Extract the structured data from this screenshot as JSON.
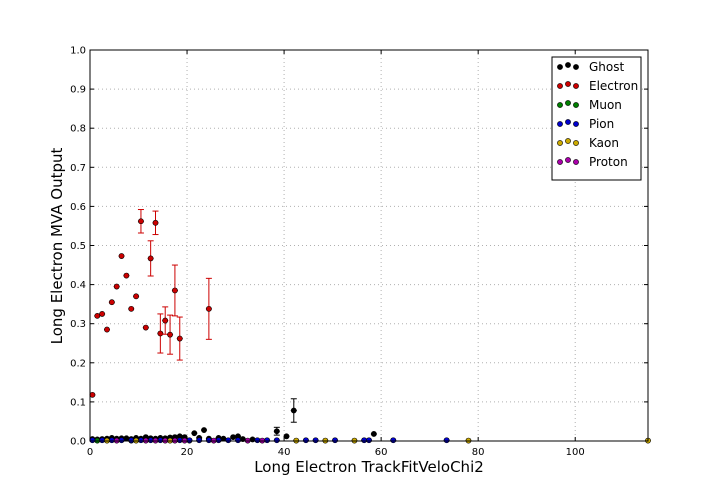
{
  "chart_data": {
    "type": "scatter",
    "title": "",
    "xlabel": "Long Electron TrackFitVeloChi2",
    "ylabel": "Long Electron MVA Output",
    "xlim": [
      0,
      115
    ],
    "ylim": [
      0,
      1.0
    ],
    "xticks": [
      "0",
      "20",
      "40",
      "60",
      "80",
      "100"
    ],
    "xtick_values": [
      0,
      20,
      40,
      60,
      80,
      100
    ],
    "yticks": [
      "0.0",
      "0.1",
      "0.2",
      "0.3",
      "0.4",
      "0.5",
      "0.6",
      "0.7",
      "0.8",
      "0.9",
      "1.0"
    ],
    "ytick_values": [
      0,
      0.1,
      0.2,
      0.3,
      0.4,
      0.5,
      0.6,
      0.7,
      0.8,
      0.9,
      1.0
    ],
    "grid": true,
    "legend_position": "top-right",
    "series": [
      {
        "name": "Ghost",
        "color": "#000000",
        "points": [
          {
            "x": 0.5,
            "y": 0.005
          },
          {
            "x": 1.5,
            "y": 0.004
          },
          {
            "x": 2.5,
            "y": 0.005
          },
          {
            "x": 3.5,
            "y": 0.006
          },
          {
            "x": 4.5,
            "y": 0.008
          },
          {
            "x": 5.5,
            "y": 0.006
          },
          {
            "x": 6.5,
            "y": 0.007
          },
          {
            "x": 7.5,
            "y": 0.007
          },
          {
            "x": 8.5,
            "y": 0.005
          },
          {
            "x": 9.5,
            "y": 0.008
          },
          {
            "x": 10.5,
            "y": 0.006
          },
          {
            "x": 11.5,
            "y": 0.01
          },
          {
            "x": 12.5,
            "y": 0.007
          },
          {
            "x": 13.5,
            "y": 0.006
          },
          {
            "x": 14.5,
            "y": 0.008
          },
          {
            "x": 15.5,
            "y": 0.007
          },
          {
            "x": 16.5,
            "y": 0.009
          },
          {
            "x": 17.5,
            "y": 0.01
          },
          {
            "x": 18.5,
            "y": 0.012
          },
          {
            "x": 19.5,
            "y": 0.01
          },
          {
            "x": 21.5,
            "y": 0.02
          },
          {
            "x": 22.5,
            "y": 0.008
          },
          {
            "x": 23.5,
            "y": 0.028
          },
          {
            "x": 24.5,
            "y": 0.006
          },
          {
            "x": 26.5,
            "y": 0.008
          },
          {
            "x": 27.5,
            "y": 0.006
          },
          {
            "x": 29.5,
            "y": 0.01
          },
          {
            "x": 30.5,
            "y": 0.012
          },
          {
            "x": 31.5,
            "y": 0.005
          },
          {
            "x": 33.5,
            "y": 0.004
          },
          {
            "x": 38.5,
            "y": 0.025,
            "err": 0.01
          },
          {
            "x": 40.5,
            "y": 0.012
          },
          {
            "x": 42.0,
            "y": 0.078,
            "err": 0.03
          },
          {
            "x": 58.5,
            "y": 0.018
          }
        ]
      },
      {
        "name": "Electron",
        "color": "#cc0000",
        "points": [
          {
            "x": 0.5,
            "y": 0.118
          },
          {
            "x": 1.5,
            "y": 0.32
          },
          {
            "x": 2.5,
            "y": 0.325
          },
          {
            "x": 3.5,
            "y": 0.285
          },
          {
            "x": 4.5,
            "y": 0.355
          },
          {
            "x": 5.5,
            "y": 0.395
          },
          {
            "x": 6.5,
            "y": 0.473
          },
          {
            "x": 7.5,
            "y": 0.423
          },
          {
            "x": 8.5,
            "y": 0.338
          },
          {
            "x": 9.5,
            "y": 0.37
          },
          {
            "x": 10.5,
            "y": 0.562,
            "err": 0.03
          },
          {
            "x": 11.5,
            "y": 0.29
          },
          {
            "x": 12.5,
            "y": 0.467,
            "err": 0.045
          },
          {
            "x": 13.5,
            "y": 0.558,
            "err": 0.03
          },
          {
            "x": 14.5,
            "y": 0.275,
            "err": 0.05
          },
          {
            "x": 15.5,
            "y": 0.308,
            "err": 0.035
          },
          {
            "x": 16.5,
            "y": 0.272,
            "err": 0.05
          },
          {
            "x": 17.5,
            "y": 0.385,
            "err": 0.065
          },
          {
            "x": 18.5,
            "y": 0.262,
            "err": 0.055
          },
          {
            "x": 24.5,
            "y": 0.338,
            "err": 0.078
          }
        ]
      },
      {
        "name": "Muon",
        "color": "#007f00",
        "points": [
          {
            "x": 1.5,
            "y": 0.001
          },
          {
            "x": 8.5,
            "y": 0.001
          },
          {
            "x": 20.5,
            "y": 0.001
          }
        ]
      },
      {
        "name": "Pion",
        "color": "#0000cc",
        "points": [
          {
            "x": 0.5,
            "y": 0.002
          },
          {
            "x": 2.5,
            "y": 0.002
          },
          {
            "x": 4.5,
            "y": 0.002
          },
          {
            "x": 6.5,
            "y": 0.002
          },
          {
            "x": 8.5,
            "y": 0.002
          },
          {
            "x": 10.5,
            "y": 0.002
          },
          {
            "x": 12.5,
            "y": 0.002
          },
          {
            "x": 14.5,
            "y": 0.002
          },
          {
            "x": 16.5,
            "y": 0.002
          },
          {
            "x": 18.5,
            "y": 0.002
          },
          {
            "x": 20.5,
            "y": 0.002
          },
          {
            "x": 22.5,
            "y": 0.002
          },
          {
            "x": 24.5,
            "y": 0.002
          },
          {
            "x": 26.5,
            "y": 0.002
          },
          {
            "x": 28.5,
            "y": 0.002
          },
          {
            "x": 30.5,
            "y": 0.002
          },
          {
            "x": 34.5,
            "y": 0.002
          },
          {
            "x": 36.5,
            "y": 0.002
          },
          {
            "x": 38.5,
            "y": 0.002
          },
          {
            "x": 44.5,
            "y": 0.002
          },
          {
            "x": 46.5,
            "y": 0.002
          },
          {
            "x": 50.5,
            "y": 0.002
          },
          {
            "x": 56.5,
            "y": 0.002
          },
          {
            "x": 57.5,
            "y": 0.002
          },
          {
            "x": 62.5,
            "y": 0.002
          },
          {
            "x": 73.5,
            "y": 0.002
          }
        ]
      },
      {
        "name": "Kaon",
        "color": "#ccaa00",
        "points": [
          {
            "x": 3.5,
            "y": 0.001
          },
          {
            "x": 9.5,
            "y": 0.001
          },
          {
            "x": 16.5,
            "y": 0.001
          },
          {
            "x": 42.5,
            "y": 0.001
          },
          {
            "x": 48.5,
            "y": 0.001
          },
          {
            "x": 54.5,
            "y": 0.001
          },
          {
            "x": 78.0,
            "y": 0.001
          },
          {
            "x": 115.0,
            "y": 0.001
          }
        ]
      },
      {
        "name": "Proton",
        "color": "#aa00aa",
        "points": [
          {
            "x": 5.5,
            "y": 0.001
          },
          {
            "x": 11.5,
            "y": 0.001
          },
          {
            "x": 13.5,
            "y": 0.001
          },
          {
            "x": 15.5,
            "y": 0.001
          },
          {
            "x": 17.5,
            "y": 0.001
          },
          {
            "x": 19.5,
            "y": 0.001
          },
          {
            "x": 25.5,
            "y": 0.001
          },
          {
            "x": 32.5,
            "y": 0.001
          },
          {
            "x": 35.5,
            "y": 0.001
          }
        ]
      }
    ]
  }
}
